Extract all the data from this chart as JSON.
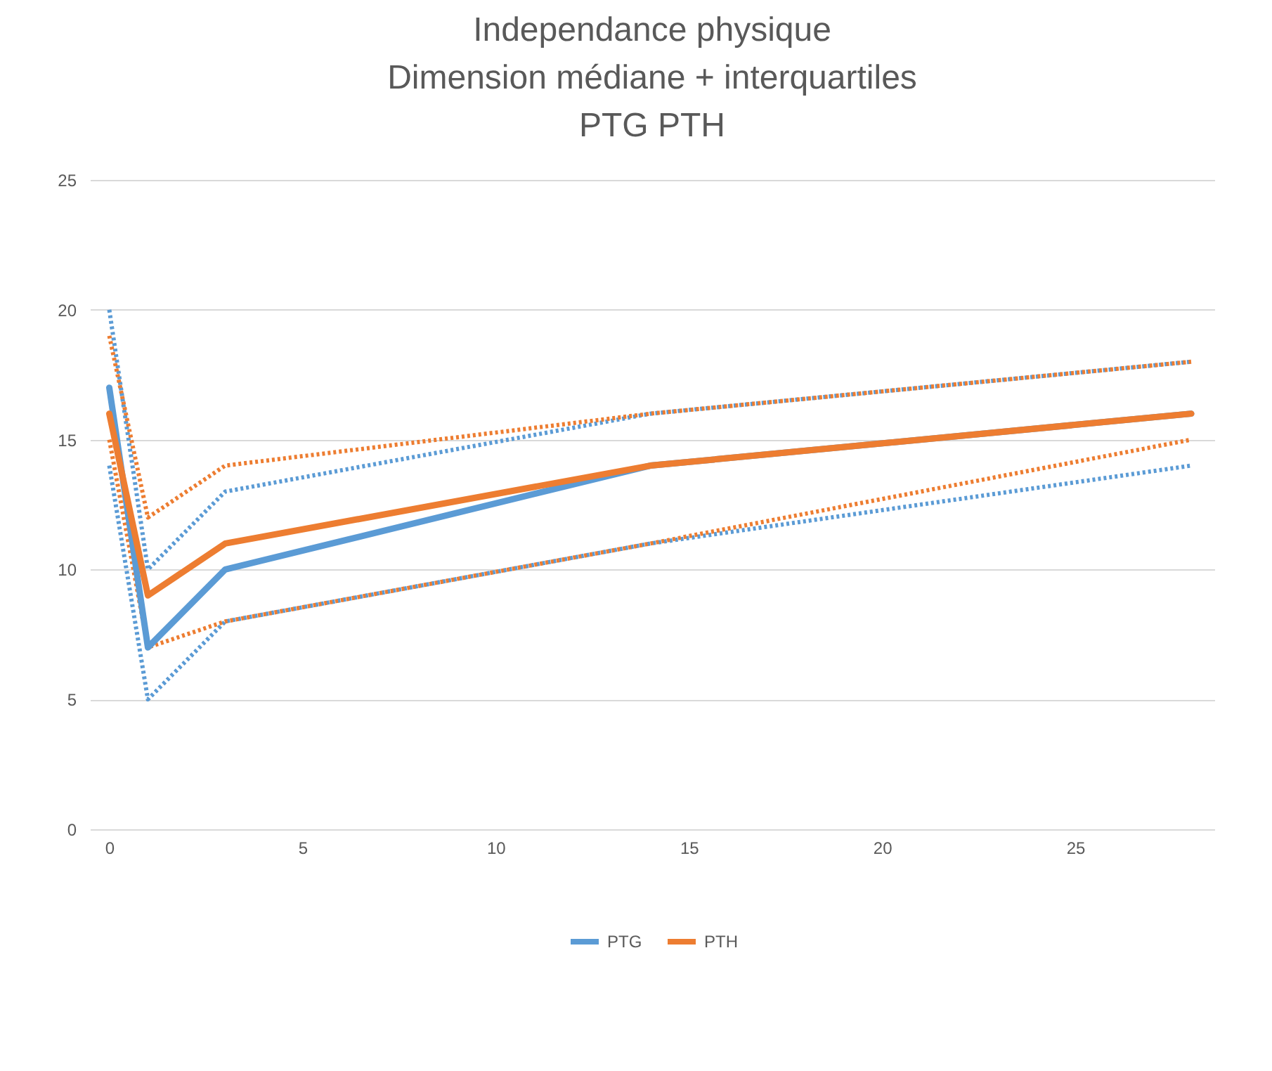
{
  "chart_data": {
    "type": "line",
    "title": "Independance physique\nDimension médiane + interquartiles\nPTG PTH",
    "x": [
      0,
      1,
      3,
      14,
      28
    ],
    "series": [
      {
        "name": "PTG",
        "color": "#5b9bd5",
        "values": [
          17,
          7,
          10,
          14,
          16
        ]
      },
      {
        "name": "PTH",
        "color": "#ed7d31",
        "values": [
          16,
          9,
          11,
          14,
          16
        ]
      },
      {
        "color": "#5b9bd5",
        "line_style": "dotted",
        "values": [
          20,
          10,
          13,
          16,
          18
        ]
      },
      {
        "color": "#5b9bd5",
        "line_style": "dotted",
        "values": [
          14,
          5,
          8,
          11,
          14
        ]
      },
      {
        "color": "#ed7d31",
        "line_style": "dotted",
        "values": [
          19,
          12,
          14,
          16,
          18
        ]
      },
      {
        "color": "#ed7d31",
        "line_style": "dotted",
        "values": [
          15,
          7,
          8,
          11,
          15
        ]
      }
    ],
    "xlim": [
      -0.5,
      28.6
    ],
    "xticks": [
      0,
      5,
      10,
      15,
      20,
      25
    ],
    "ylim": [
      0,
      25
    ],
    "yticks": [
      0,
      5,
      10,
      15,
      20,
      25
    ],
    "grid": "y",
    "legend": "bottom",
    "line_style": "solid"
  }
}
